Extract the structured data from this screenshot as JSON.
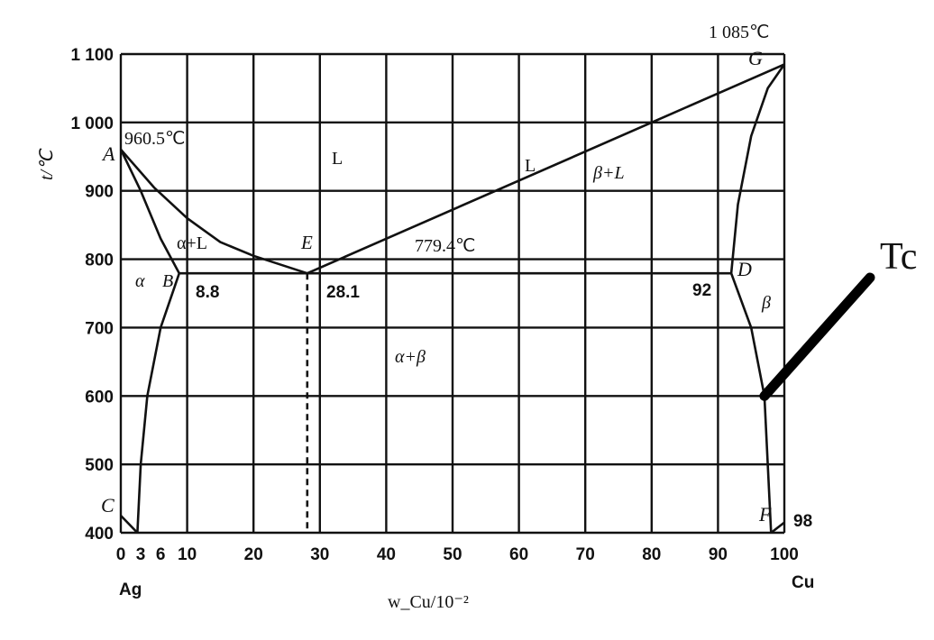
{
  "chart_data": {
    "type": "phase-diagram",
    "ylabel": "t/℃",
    "xlabel": "w_Cu/10⁻²",
    "xlim": [
      0,
      100
    ],
    "ylim": [
      400,
      1100
    ],
    "grid": true,
    "x_ticks": [
      0,
      3,
      6,
      10,
      20,
      30,
      40,
      50,
      60,
      70,
      80,
      90,
      100
    ],
    "y_ticks": [
      400,
      500,
      600,
      700,
      800,
      900,
      1000,
      1100
    ],
    "y_tick_labels": [
      "400",
      "500",
      "600",
      "700",
      "800",
      "900",
      "1 000",
      "1 100"
    ],
    "x_end_labels": {
      "left": "Ag",
      "right": "Cu"
    },
    "curves": [
      {
        "name": "liquidus-left",
        "points": [
          [
            0,
            960.5
          ],
          [
            5,
            905
          ],
          [
            10,
            860
          ],
          [
            15,
            825
          ],
          [
            20,
            805
          ],
          [
            28.1,
            779.4
          ]
        ]
      },
      {
        "name": "solidus-left",
        "points": [
          [
            0,
            960.5
          ],
          [
            3,
            900
          ],
          [
            6,
            830
          ],
          [
            8.8,
            779.4
          ]
        ]
      },
      {
        "name": "liquidus-right",
        "points": [
          [
            28.1,
            779.4
          ],
          [
            100,
            1085
          ]
        ]
      },
      {
        "name": "solidus-right",
        "points": [
          [
            92,
            779.4
          ],
          [
            93,
            880
          ],
          [
            95,
            980
          ],
          [
            97.5,
            1050
          ],
          [
            100,
            1085
          ]
        ]
      },
      {
        "name": "solvus-left",
        "points": [
          [
            8.8,
            779.4
          ],
          [
            6,
            700
          ],
          [
            4,
            600
          ],
          [
            3,
            500
          ],
          [
            2.5,
            400
          ]
        ]
      },
      {
        "name": "solvus-right",
        "points": [
          [
            92,
            779.4
          ],
          [
            95,
            700
          ],
          [
            97,
            600
          ],
          [
            97.5,
            500
          ],
          [
            98,
            400
          ]
        ]
      },
      {
        "name": "eutectic-line",
        "points": [
          [
            8.8,
            779.4
          ],
          [
            92,
            779.4
          ]
        ]
      },
      {
        "name": "eutectic-composition",
        "style": "dashed",
        "points": [
          [
            28.1,
            779.4
          ],
          [
            28.1,
            400
          ]
        ]
      },
      {
        "name": "left-tick-C",
        "points": [
          [
            0,
            425
          ],
          [
            2.5,
            400
          ]
        ]
      },
      {
        "name": "right-tick-F",
        "points": [
          [
            98,
            400
          ],
          [
            100,
            415
          ]
        ]
      }
    ],
    "temperature_labels": [
      "960.5℃",
      "1 085℃",
      "779.4℃"
    ],
    "composition_labels": [
      "8.8",
      "28.1",
      "92",
      "98"
    ],
    "point_labels": [
      "A",
      "B",
      "C",
      "D",
      "E",
      "F",
      "G"
    ],
    "region_labels": [
      "L",
      "L",
      "α+L",
      "β+L",
      "α",
      "β",
      "α+β"
    ],
    "annotation": {
      "text": "Tc",
      "target": [
        97,
        600
      ]
    }
  }
}
